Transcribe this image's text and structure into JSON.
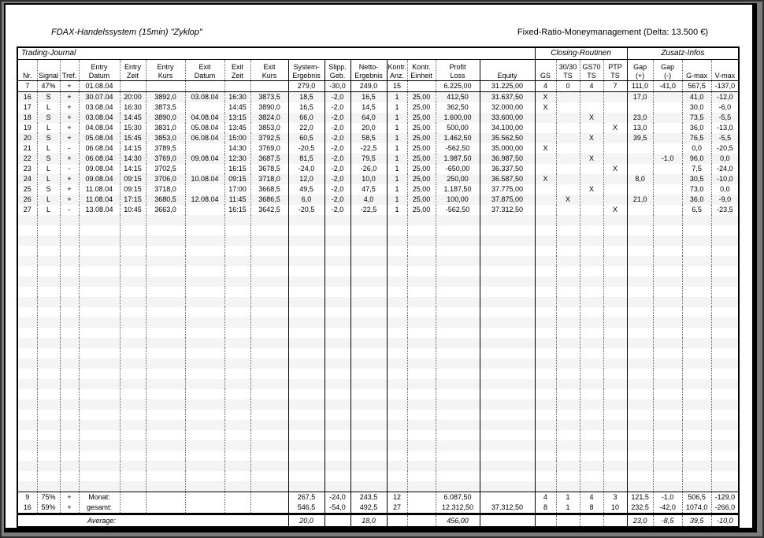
{
  "page": {
    "title_left": "FDAX-Handelssystem (15min) \"Zyklop\"",
    "title_right": "Fixed-Ratio-Moneymanagement (Delta: 13.500 €)"
  },
  "table": {
    "group_headers": {
      "left": "Trading-Journal",
      "closing": "Closing-Routinen",
      "zusatz": "Zusatz-Infos"
    },
    "columns": [
      {
        "key": "nr",
        "l1": "",
        "l2": "Nr."
      },
      {
        "key": "signal",
        "l1": "",
        "l2": "Signal"
      },
      {
        "key": "tref",
        "l1": "",
        "l2": "Tref."
      },
      {
        "key": "entry-datum",
        "l1": "Entry",
        "l2": "Datum"
      },
      {
        "key": "entry-zeit",
        "l1": "Entry",
        "l2": "Zeit"
      },
      {
        "key": "entry-kurs",
        "l1": "Entry",
        "l2": "Kurs"
      },
      {
        "key": "exit-datum",
        "l1": "Exit",
        "l2": "Datum"
      },
      {
        "key": "exit-zeit",
        "l1": "Exit",
        "l2": "Zeit"
      },
      {
        "key": "exit-kurs",
        "l1": "Exit",
        "l2": "Kurs"
      },
      {
        "key": "system-ergebnis",
        "l1": "System-",
        "l2": "Ergebnis"
      },
      {
        "key": "slipp-geb",
        "l1": "Slipp.",
        "l2": "Geb."
      },
      {
        "key": "netto-ergebnis",
        "l1": "Netto-",
        "l2": "Ergebnis"
      },
      {
        "key": "kontr-anz",
        "l1": "Kontr.",
        "l2": "Anz."
      },
      {
        "key": "kontr-einheit",
        "l1": "Kontr.",
        "l2": "Einheit"
      },
      {
        "key": "profit-loss",
        "l1": "Profit",
        "l2": "Loss"
      },
      {
        "key": "equity",
        "l1": "",
        "l2": "Equity"
      },
      {
        "key": "gs",
        "l1": "",
        "l2": "GS"
      },
      {
        "key": "ts3030",
        "l1": "30/30",
        "l2": "TS"
      },
      {
        "key": "gs70",
        "l1": "GS70",
        "l2": "TS"
      },
      {
        "key": "ptp",
        "l1": "PTP",
        "l2": "TS"
      },
      {
        "key": "gap-plus",
        "l1": "Gap",
        "l2": "(+)"
      },
      {
        "key": "gap-minus",
        "l1": "Gap",
        "l2": "(-)"
      },
      {
        "key": "g-max",
        "l1": "",
        "l2": "G-max"
      },
      {
        "key": "v-max",
        "l1": "",
        "l2": "V-max"
      }
    ],
    "rows": [
      [
        "7",
        "47%",
        "+",
        "01.08.04",
        "",
        "",
        "",
        "",
        "",
        "279,0",
        "-30,0",
        "249,0",
        "15",
        "",
        "6.225,00",
        "31.225,00",
        "4",
        "0",
        "4",
        "7",
        "111,0",
        "-41,0",
        "567,5",
        "-137,0"
      ],
      [
        "16",
        "S",
        "+",
        "30.07.04",
        "20:00",
        "3892,0",
        "03.08.04",
        "16:30",
        "3873,5",
        "18,5",
        "-2,0",
        "16,5",
        "1",
        "25,00",
        "412,50",
        "31.637,50",
        "X",
        "",
        "",
        "",
        "17,0",
        "",
        "41,0",
        "-12,0"
      ],
      [
        "17",
        "L",
        "+",
        "03.08.04",
        "16:30",
        "3873,5",
        "",
        "14:45",
        "3890,0",
        "16,5",
        "-2,0",
        "14,5",
        "1",
        "25,00",
        "362,50",
        "32.000,00",
        "X",
        "",
        "",
        "",
        "",
        "",
        "30,0",
        "-6,0"
      ],
      [
        "18",
        "S",
        "+",
        "03.08.04",
        "14:45",
        "3890,0",
        "04.08.04",
        "13:15",
        "3824,0",
        "66,0",
        "-2,0",
        "64,0",
        "1",
        "25,00",
        "1.600,00",
        "33.600,00",
        "",
        "",
        "X",
        "",
        "23,0",
        "",
        "73,5",
        "-5,5"
      ],
      [
        "19",
        "L",
        "+",
        "04.08.04",
        "15:30",
        "3831,0",
        "05.08.04",
        "13:45",
        "3853,0",
        "22,0",
        "-2,0",
        "20,0",
        "1",
        "25,00",
        "500,00",
        "34.100,00",
        "",
        "",
        "",
        "X",
        "13,0",
        "",
        "36,0",
        "-13,0"
      ],
      [
        "20",
        "S",
        "+",
        "05.08.04",
        "15:45",
        "3853,0",
        "06.08.04",
        "15:00",
        "3792,5",
        "60,5",
        "-2,0",
        "58,5",
        "1",
        "25,00",
        "1.462,50",
        "35.562,50",
        "",
        "",
        "X",
        "",
        "39,5",
        "",
        "76,5",
        "-5,5"
      ],
      [
        "21",
        "L",
        "-",
        "06.08.04",
        "14:15",
        "3789,5",
        "",
        "14:30",
        "3769,0",
        "-20,5",
        "-2,0",
        "-22,5",
        "1",
        "25,00",
        "-562,50",
        "35.000,00",
        "X",
        "",
        "",
        "",
        "",
        "",
        "0,0",
        "-20,5"
      ],
      [
        "22",
        "S",
        "+",
        "06.08.04",
        "14:30",
        "3769,0",
        "09.08.04",
        "12:30",
        "3687,5",
        "81,5",
        "-2,0",
        "79,5",
        "1",
        "25,00",
        "1.987,50",
        "36.987,50",
        "",
        "",
        "X",
        "",
        "",
        "-1,0",
        "96,0",
        "0,0"
      ],
      [
        "23",
        "L",
        "-",
        "09.08.04",
        "14:15",
        "3702,5",
        "",
        "16:15",
        "3678,5",
        "-24,0",
        "-2,0",
        "-26,0",
        "1",
        "25,00",
        "-650,00",
        "36.337,50",
        "",
        "",
        "",
        "X",
        "",
        "",
        "7,5",
        "-24,0"
      ],
      [
        "24",
        "L",
        "+",
        "09.08.04",
        "09:15",
        "3706,0",
        "10.08.04",
        "09:15",
        "3718,0",
        "12,0",
        "-2,0",
        "10,0",
        "1",
        "25,00",
        "250,00",
        "36.587,50",
        "X",
        "",
        "",
        "",
        "8,0",
        "",
        "30,5",
        "-10,0"
      ],
      [
        "25",
        "S",
        "+",
        "11.08.04",
        "09:15",
        "3718,0",
        "",
        "17:00",
        "3668,5",
        "49,5",
        "-2,0",
        "47,5",
        "1",
        "25,00",
        "1.187,50",
        "37.775,00",
        "",
        "",
        "X",
        "",
        "",
        "",
        "73,0",
        "0,0"
      ],
      [
        "26",
        "L",
        "+",
        "11.08.04",
        "17:15",
        "3680,5",
        "12.08.04",
        "11:45",
        "3686,5",
        "6,0",
        "-2,0",
        "4,0",
        "1",
        "25,00",
        "100,00",
        "37.875,00",
        "",
        "X",
        "",
        "",
        "21,0",
        "",
        "36,0",
        "-9,0"
      ],
      [
        "27",
        "L",
        "-",
        "13.08.04",
        "10:45",
        "3663,0",
        "",
        "16:15",
        "3642,5",
        "-20,5",
        "-2,0",
        "-22,5",
        "1",
        "25,00",
        "-562,50",
        "37.312,50",
        "",
        "",
        "",
        "X",
        "",
        "",
        "6,5",
        "-23,5"
      ]
    ],
    "empty_row_count": 27,
    "summary": {
      "monat": [
        "9",
        "75%",
        "+",
        "Monat:",
        "",
        "",
        "",
        "",
        "",
        "267,5",
        "-24,0",
        "243,5",
        "12",
        "",
        "6.087,50",
        "",
        "4",
        "1",
        "4",
        "3",
        "121,5",
        "-1,0",
        "506,5",
        "-129,0"
      ],
      "gesamt": [
        "16",
        "59%",
        "+",
        "gesamt:",
        "",
        "",
        "",
        "",
        "",
        "546,5",
        "-54,0",
        "492,5",
        "27",
        "",
        "12.312,50",
        "37.312,50",
        "8",
        "1",
        "8",
        "10",
        "232,5",
        "-42,0",
        "1074,0",
        "-266,0"
      ]
    },
    "average": {
      "label": "Average:",
      "values": [
        "20,0",
        "",
        "18,0",
        "",
        "",
        "456,00",
        "",
        "",
        "",
        "",
        "",
        "23,0",
        "-8,5",
        "39,5",
        "-10,0"
      ]
    }
  }
}
